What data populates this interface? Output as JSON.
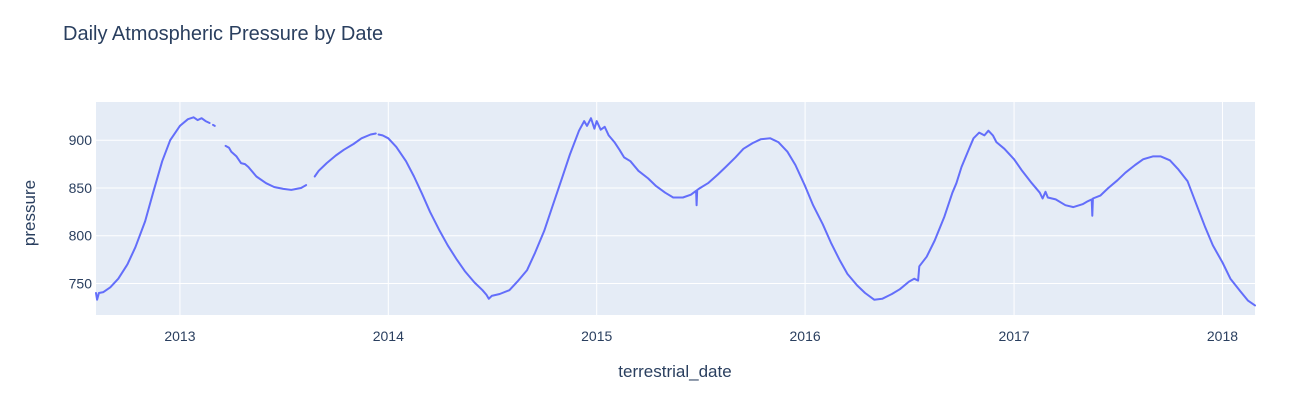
{
  "chart_data": {
    "type": "line",
    "title": "Daily Atmospheric Pressure by Date",
    "xlabel": "terrestrial_date",
    "ylabel": "pressure",
    "x_axis_type": "date",
    "xlim": [
      "2012-08-07",
      "2018-02-27"
    ],
    "ylim": [
      717,
      940
    ],
    "x_ticks": [
      {
        "date": "2013-01-01",
        "label": "2013"
      },
      {
        "date": "2014-01-01",
        "label": "2014"
      },
      {
        "date": "2015-01-01",
        "label": "2015"
      },
      {
        "date": "2016-01-01",
        "label": "2016"
      },
      {
        "date": "2017-01-01",
        "label": "2017"
      },
      {
        "date": "2018-01-01",
        "label": "2018"
      }
    ],
    "y_ticks": [
      750,
      800,
      850,
      900
    ],
    "grid": true,
    "legend": "none",
    "colors": {
      "line": "#636efa",
      "plot_bg": "#e5ecf6",
      "grid": "#ffffff",
      "text": "#2a3f5f"
    },
    "series": [
      {
        "segments": [
          [
            [
              "2012-08-07",
              740
            ],
            [
              "2012-08-09",
              733
            ],
            [
              "2012-08-12",
              740
            ],
            [
              "2012-08-20",
              741
            ],
            [
              "2012-09-01",
              746
            ],
            [
              "2012-09-15",
              755
            ],
            [
              "2012-10-01",
              770
            ],
            [
              "2012-10-15",
              788
            ],
            [
              "2012-11-01",
              815
            ],
            [
              "2012-11-15",
              845
            ],
            [
              "2012-12-01",
              878
            ],
            [
              "2012-12-15",
              900
            ],
            [
              "2013-01-01",
              915
            ],
            [
              "2013-01-15",
              922
            ],
            [
              "2013-01-25",
              924
            ],
            [
              "2013-02-01",
              921
            ],
            [
              "2013-02-08",
              923
            ],
            [
              "2013-02-15",
              920
            ],
            [
              "2013-02-22",
              918
            ]
          ],
          [
            [
              "2013-02-28",
              916
            ],
            [
              "2013-03-03",
              915
            ]
          ],
          [
            [
              "2013-03-22",
              894
            ],
            [
              "2013-03-28",
              892
            ],
            [
              "2013-04-01",
              888
            ],
            [
              "2013-04-10",
              883
            ],
            [
              "2013-04-18",
              876
            ],
            [
              "2013-04-25",
              875
            ],
            [
              "2013-05-01",
              872
            ],
            [
              "2013-05-05",
              869
            ],
            [
              "2013-05-15",
              862
            ],
            [
              "2013-06-01",
              855
            ],
            [
              "2013-06-15",
              851
            ],
            [
              "2013-07-01",
              849
            ],
            [
              "2013-07-15",
              848
            ],
            [
              "2013-08-01",
              850
            ],
            [
              "2013-08-10",
              853
            ]
          ],
          [
            [
              "2013-08-25",
              862
            ],
            [
              "2013-09-01",
              868
            ],
            [
              "2013-09-15",
              876
            ],
            [
              "2013-10-01",
              884
            ],
            [
              "2013-10-15",
              890
            ],
            [
              "2013-11-01",
              896
            ],
            [
              "2013-11-15",
              902
            ],
            [
              "2013-12-01",
              906
            ],
            [
              "2013-12-10",
              907
            ]
          ],
          [
            [
              "2013-12-15",
              906
            ],
            [
              "2013-12-22",
              905
            ],
            [
              "2014-01-01",
              902
            ],
            [
              "2014-01-15",
              893
            ],
            [
              "2014-02-01",
              878
            ],
            [
              "2014-02-15",
              862
            ],
            [
              "2014-03-01",
              844
            ],
            [
              "2014-03-15",
              825
            ],
            [
              "2014-04-01",
              805
            ],
            [
              "2014-04-15",
              790
            ],
            [
              "2014-05-01",
              775
            ],
            [
              "2014-05-15",
              763
            ],
            [
              "2014-06-01",
              751
            ],
            [
              "2014-06-15",
              743
            ],
            [
              "2014-06-22",
              738
            ],
            [
              "2014-06-26",
              734
            ],
            [
              "2014-07-01",
              737
            ],
            [
              "2014-07-15",
              739
            ],
            [
              "2014-08-01",
              743
            ],
            [
              "2014-08-15",
              752
            ],
            [
              "2014-09-01",
              764
            ],
            [
              "2014-09-15",
              782
            ],
            [
              "2014-10-01",
              805
            ],
            [
              "2014-10-15",
              830
            ],
            [
              "2014-11-01",
              860
            ],
            [
              "2014-11-15",
              885
            ],
            [
              "2014-12-01",
              910
            ],
            [
              "2014-12-10",
              920
            ],
            [
              "2014-12-15",
              915
            ],
            [
              "2014-12-22",
              923
            ],
            [
              "2014-12-28",
              912
            ],
            [
              "2015-01-01",
              920
            ],
            [
              "2015-01-08",
              911
            ],
            [
              "2015-01-15",
              914
            ],
            [
              "2015-01-22",
              905
            ],
            [
              "2015-02-01",
              898
            ],
            [
              "2015-02-10",
              890
            ],
            [
              "2015-02-18",
              882
            ],
            [
              "2015-03-01",
              878
            ],
            [
              "2015-03-15",
              868
            ],
            [
              "2015-04-01",
              860
            ],
            [
              "2015-04-15",
              852
            ],
            [
              "2015-05-01",
              845
            ],
            [
              "2015-05-15",
              840
            ],
            [
              "2015-06-01",
              840
            ],
            [
              "2015-06-15",
              843
            ],
            [
              "2015-06-24",
              847
            ],
            [
              "2015-06-25",
              832
            ],
            [
              "2015-06-26",
              848
            ],
            [
              "2015-07-01",
              850
            ],
            [
              "2015-07-15",
              855
            ],
            [
              "2015-08-01",
              864
            ],
            [
              "2015-08-15",
              872
            ],
            [
              "2015-09-01",
              882
            ],
            [
              "2015-09-15",
              891
            ],
            [
              "2015-10-01",
              897
            ],
            [
              "2015-10-15",
              901
            ],
            [
              "2015-11-01",
              902
            ],
            [
              "2015-11-15",
              898
            ],
            [
              "2015-12-01",
              888
            ],
            [
              "2015-12-15",
              874
            ],
            [
              "2016-01-01",
              852
            ],
            [
              "2016-01-15",
              832
            ],
            [
              "2016-02-01",
              812
            ],
            [
              "2016-02-15",
              793
            ],
            [
              "2016-03-01",
              775
            ],
            [
              "2016-03-15",
              760
            ],
            [
              "2016-04-01",
              748
            ],
            [
              "2016-04-15",
              740
            ],
            [
              "2016-05-01",
              733
            ],
            [
              "2016-05-15",
              734
            ],
            [
              "2016-06-01",
              739
            ],
            [
              "2016-06-15",
              744
            ],
            [
              "2016-07-01",
              752
            ],
            [
              "2016-07-10",
              755
            ],
            [
              "2016-07-17",
              753
            ],
            [
              "2016-07-19",
              768
            ],
            [
              "2016-08-01",
              778
            ],
            [
              "2016-08-15",
              795
            ],
            [
              "2016-09-01",
              820
            ],
            [
              "2016-09-15",
              845
            ],
            [
              "2016-09-22",
              855
            ],
            [
              "2016-10-01",
              872
            ],
            [
              "2016-10-15",
              892
            ],
            [
              "2016-10-22",
              902
            ],
            [
              "2016-11-01",
              908
            ],
            [
              "2016-11-10",
              905
            ],
            [
              "2016-11-17",
              910
            ],
            [
              "2016-11-25",
              905
            ],
            [
              "2016-12-01",
              898
            ],
            [
              "2016-12-15",
              891
            ],
            [
              "2017-01-01",
              880
            ],
            [
              "2017-01-15",
              868
            ],
            [
              "2017-02-01",
              855
            ],
            [
              "2017-02-15",
              845
            ],
            [
              "2017-02-20",
              839
            ],
            [
              "2017-02-25",
              846
            ],
            [
              "2017-03-01",
              840
            ],
            [
              "2017-03-15",
              838
            ],
            [
              "2017-04-01",
              832
            ],
            [
              "2017-04-15",
              830
            ],
            [
              "2017-05-01",
              833
            ],
            [
              "2017-05-10",
              836
            ],
            [
              "2017-05-17",
              838
            ],
            [
              "2017-05-18",
              821
            ],
            [
              "2017-05-19",
              839
            ],
            [
              "2017-06-01",
              842
            ],
            [
              "2017-06-15",
              850
            ],
            [
              "2017-07-01",
              858
            ],
            [
              "2017-07-15",
              866
            ],
            [
              "2017-08-01",
              874
            ],
            [
              "2017-08-15",
              880
            ],
            [
              "2017-09-01",
              883
            ],
            [
              "2017-09-15",
              883
            ],
            [
              "2017-10-01",
              879
            ],
            [
              "2017-10-15",
              870
            ],
            [
              "2017-11-01",
              857
            ],
            [
              "2017-11-15",
              835
            ],
            [
              "2017-12-01",
              810
            ],
            [
              "2017-12-15",
              790
            ],
            [
              "2018-01-01",
              772
            ],
            [
              "2018-01-15",
              755
            ],
            [
              "2018-02-01",
              742
            ],
            [
              "2018-02-15",
              732
            ],
            [
              "2018-02-27",
              727
            ]
          ]
        ]
      }
    ]
  }
}
